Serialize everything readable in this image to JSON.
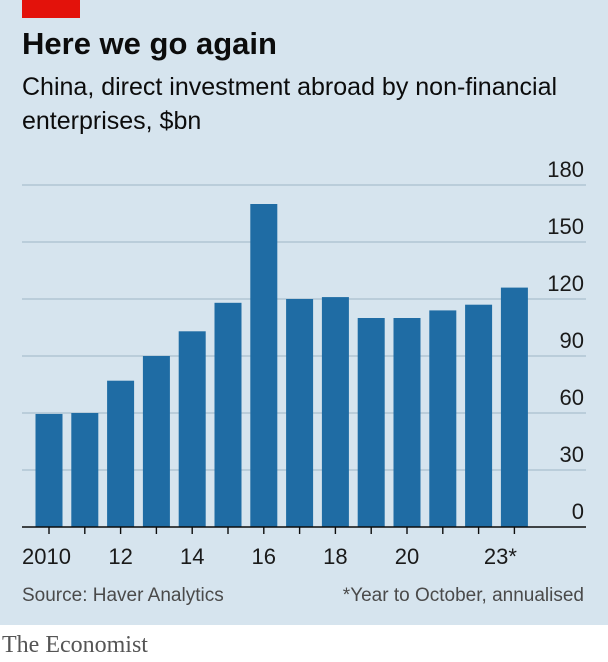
{
  "title": "Here we go again",
  "subtitle": "China, direct investment abroad by non-financial enterprises, $bn",
  "source": "Source: Haver Analytics",
  "footnote": "*Year to October, annualised",
  "brand": "The Economist",
  "colors": {
    "background": "#d6e4ee",
    "bar": "#1f6ca4",
    "grid": "#a9bfcf",
    "axis": "#0c0c0c",
    "accent": "#e3120b"
  },
  "chart_data": {
    "type": "bar",
    "categories": [
      "2010",
      "2011",
      "2012",
      "2013",
      "2014",
      "2015",
      "2016",
      "2017",
      "2018",
      "2019",
      "2020",
      "2021",
      "2022",
      "2023*"
    ],
    "x_tick_labels": [
      "2010",
      "",
      "12",
      "",
      "14",
      "",
      "16",
      "",
      "18",
      "",
      "20",
      "",
      "",
      "23*"
    ],
    "values": [
      59.5,
      60,
      77,
      90,
      103,
      118,
      170,
      120,
      121,
      110,
      110,
      114,
      117,
      126
    ],
    "ylim": [
      0,
      180
    ],
    "yticks": [
      0,
      30,
      60,
      90,
      120,
      150,
      180
    ],
    "y_axis_side": "right",
    "grid": true,
    "xlabel": "",
    "ylabel": ""
  }
}
